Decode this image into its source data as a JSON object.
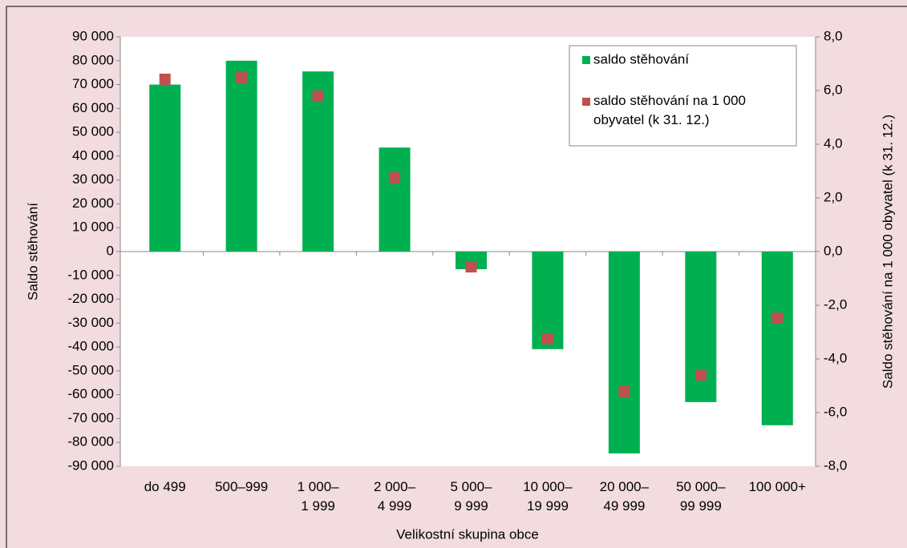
{
  "chart_data": {
    "type": "bar",
    "xlabel": "Velikostní skupina obce",
    "ylabel": "Saldo stěhování",
    "y2label": "Saldo stěhování  na 1 000 obyvatel (k 31. 12.)",
    "categories": [
      "do 499",
      "500–999",
      "1 000–\n1 999",
      "2 000–\n4 999",
      "5 000–\n9 999",
      "10 000–\n19 999",
      "20 000–\n49 999",
      "50 000–\n99 999",
      "100 000+"
    ],
    "series": [
      {
        "name": "saldo stěhování",
        "type": "bar",
        "color": "#00b050",
        "values": [
          70000,
          80000,
          75500,
          43600,
          -7400,
          -40900,
          -84600,
          -63100,
          -72800
        ]
      },
      {
        "name": "saldo stěhování na 1 000 obyvatel (k 31. 12.)",
        "type": "scatter",
        "axis": "y2",
        "color": "#c0504d",
        "values": [
          6.42,
          6.48,
          5.79,
          2.75,
          -0.57,
          -3.25,
          -5.22,
          -4.6,
          -2.48
        ]
      }
    ],
    "ylim": [
      -90000,
      90000
    ],
    "yticks": [
      {
        "value": -90000,
        "label": "-90 000"
      },
      {
        "value": -80000,
        "label": "-80 000"
      },
      {
        "value": -70000,
        "label": "-70 000"
      },
      {
        "value": -60000,
        "label": "-60 000"
      },
      {
        "value": -50000,
        "label": "-50 000"
      },
      {
        "value": -40000,
        "label": "-40 000"
      },
      {
        "value": -30000,
        "label": "-30 000"
      },
      {
        "value": -20000,
        "label": "-20 000"
      },
      {
        "value": -10000,
        "label": "-10 000"
      },
      0,
      {
        "value": 10000,
        "label": "10 000"
      },
      {
        "value": 20000,
        "label": "20 000"
      },
      {
        "value": 30000,
        "label": "30 000"
      },
      {
        "value": 40000,
        "label": "40 000"
      },
      {
        "value": 50000,
        "label": "50 000"
      },
      {
        "value": 60000,
        "label": "60 000"
      },
      {
        "value": 70000,
        "label": "70 000"
      },
      {
        "value": 80000,
        "label": "80 000"
      },
      {
        "value": 90000,
        "label": "90 000"
      }
    ],
    "y2lim": [
      -8,
      8
    ],
    "y2ticks": [
      {
        "value": -8,
        "label": "-8,0"
      },
      {
        "value": -6,
        "label": "-6,0"
      },
      {
        "value": -4,
        "label": "-4,0"
      },
      {
        "value": -2,
        "label": "-2,0"
      },
      {
        "value": 0,
        "label": "0,0"
      },
      {
        "value": 2,
        "label": "2,0"
      },
      {
        "value": 4,
        "label": "4,0"
      },
      {
        "value": 6,
        "label": "6,0"
      },
      {
        "value": 8,
        "label": "8,0"
      }
    ],
    "legend": "upper right"
  }
}
